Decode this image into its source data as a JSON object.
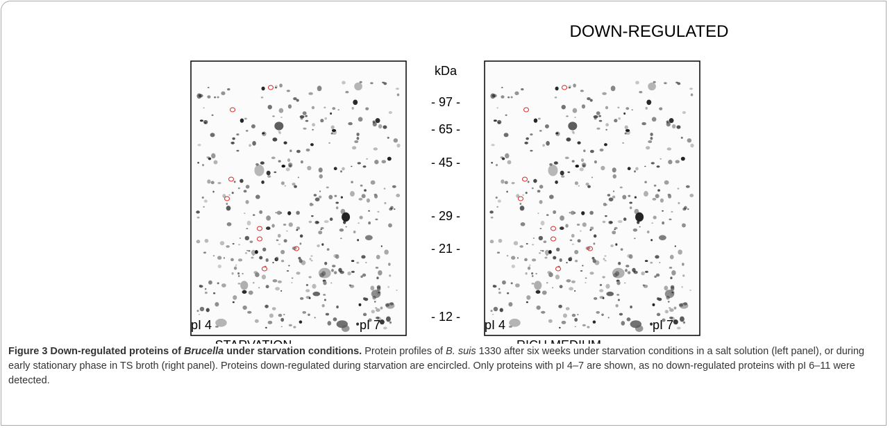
{
  "figure": {
    "heading": "DOWN-REGULATED",
    "mw_unit": "kDa",
    "mw_markers": [
      "- 97 -",
      "- 65 -",
      "- 45 -",
      "- 29 -",
      "- 21 -",
      "- 12 -"
    ],
    "panels": [
      {
        "pi_low": "pI 4",
        "pi_high": "pI 7",
        "label": "STARVATION"
      },
      {
        "pi_low": "pI 4",
        "pi_high": "pI 7",
        "label": "RICH MEDIUM"
      }
    ]
  },
  "caption": {
    "title": [
      "Figure 3 Down-regulated proteins of ",
      "Brucella",
      " under starvation conditions."
    ],
    "body": [
      " Protein profiles of ",
      "B. suis",
      " 1330 after six weeks under starvation conditions in a salt solution (left panel), or during early stationary phase in TS broth (right panel). Proteins down-regulated during starvation are encircled. Only proteins with pI 4–7 are shown, as no down-regulated proteins with pI 6–11 were detected."
    ]
  }
}
